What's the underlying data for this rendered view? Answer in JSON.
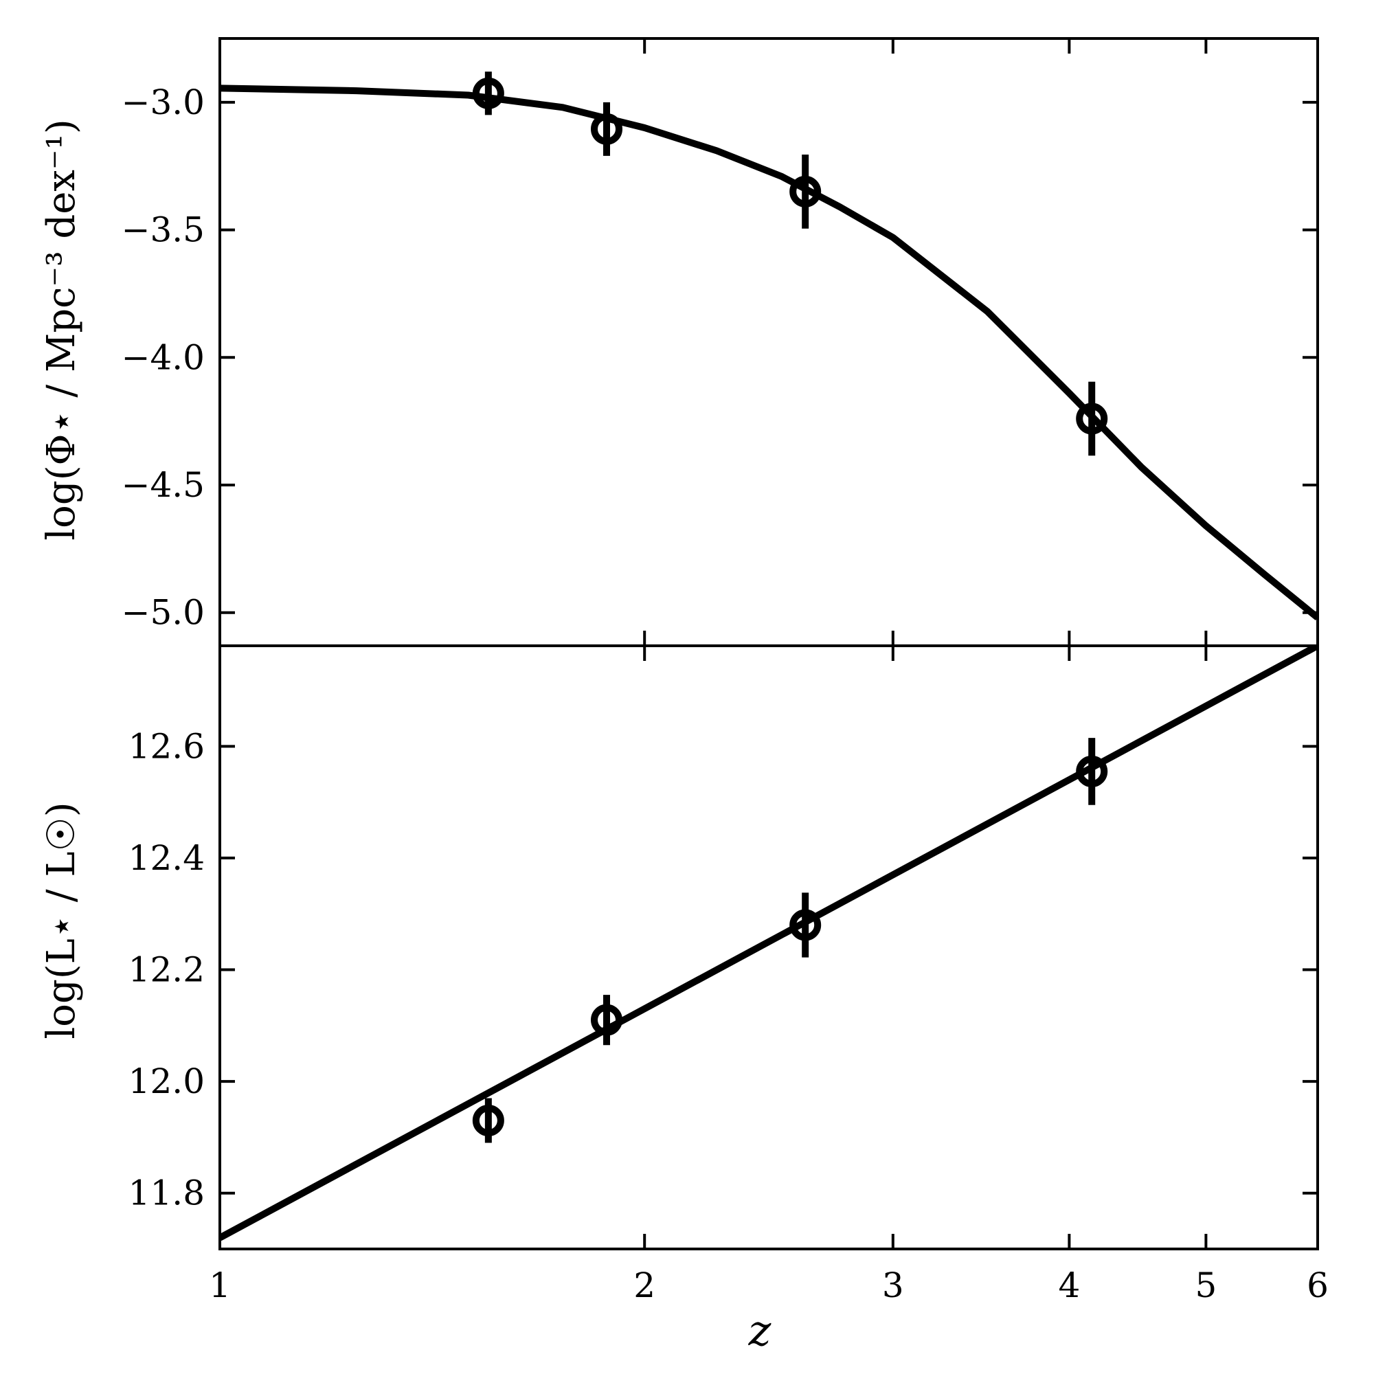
{
  "chart_data": [
    {
      "type": "line",
      "panel": "top",
      "ylabel": "log(Φ⋆ / Mpc⁻³ dex⁻¹)",
      "xlabel": "",
      "x_scale": "log",
      "xlim": [
        1,
        6
      ],
      "ylim": [
        -5.13,
        -2.75
      ],
      "yticks": [
        -3.0,
        -3.5,
        -4.0,
        -4.5,
        -5.0
      ],
      "ytick_labels": [
        "−3.0",
        "−3.5",
        "−4.0",
        "−4.5",
        "−5.0"
      ],
      "series": [
        {
          "kind": "curve",
          "x": [
            1.0,
            1.25,
            1.5,
            1.75,
            2.0,
            2.25,
            2.5,
            2.75,
            3.0,
            3.5,
            4.0,
            4.5,
            5.0,
            5.5,
            6.0
          ],
          "y": [
            -2.945,
            -2.955,
            -2.972,
            -3.02,
            -3.1,
            -3.19,
            -3.29,
            -3.41,
            -3.53,
            -3.82,
            -4.14,
            -4.43,
            -4.66,
            -4.85,
            -5.02
          ]
        },
        {
          "kind": "points",
          "x": [
            1.55,
            1.88,
            2.6,
            4.15
          ],
          "y": [
            -2.965,
            -3.105,
            -3.35,
            -4.24
          ],
          "yerr": [
            0.085,
            0.105,
            0.145,
            0.145
          ]
        }
      ]
    },
    {
      "type": "line",
      "panel": "bottom",
      "ylabel": "log(L⋆ / L☉)",
      "xlabel": "z",
      "x_scale": "log",
      "xlim": [
        1,
        6
      ],
      "ylim": [
        11.7,
        12.78
      ],
      "yticks": [
        11.8,
        12.0,
        12.2,
        12.4,
        12.6
      ],
      "ytick_labels": [
        "11.8",
        "12.0",
        "12.2",
        "12.4",
        "12.6"
      ],
      "xticks": [
        1,
        2,
        3,
        4,
        5,
        6
      ],
      "xtick_labels": [
        "1",
        "2",
        "3",
        "4",
        "5",
        "6"
      ],
      "series": [
        {
          "kind": "curve",
          "x": [
            1.0,
            6.0
          ],
          "y": [
            11.72,
            12.78
          ]
        },
        {
          "kind": "points",
          "x": [
            1.55,
            1.88,
            2.6,
            4.15
          ],
          "y": [
            11.93,
            12.11,
            12.28,
            12.555
          ],
          "yerr": [
            0.04,
            0.045,
            0.058,
            0.06
          ]
        }
      ]
    }
  ]
}
